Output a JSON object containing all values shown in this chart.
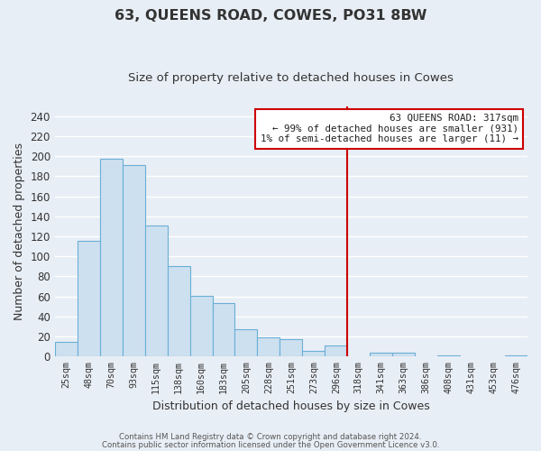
{
  "title": "63, QUEENS ROAD, COWES, PO31 8BW",
  "subtitle": "Size of property relative to detached houses in Cowes",
  "xlabel": "Distribution of detached houses by size in Cowes",
  "ylabel": "Number of detached properties",
  "bar_labels": [
    "25sqm",
    "48sqm",
    "70sqm",
    "93sqm",
    "115sqm",
    "138sqm",
    "160sqm",
    "183sqm",
    "205sqm",
    "228sqm",
    "251sqm",
    "273sqm",
    "296sqm",
    "318sqm",
    "341sqm",
    "363sqm",
    "386sqm",
    "408sqm",
    "431sqm",
    "453sqm",
    "476sqm"
  ],
  "bar_heights": [
    15,
    116,
    198,
    191,
    131,
    90,
    61,
    53,
    27,
    19,
    17,
    6,
    11,
    0,
    4,
    4,
    0,
    1,
    0,
    0,
    1
  ],
  "bar_color": "#cde0f0",
  "bar_edge_color": "#6aaed6",
  "ylim": [
    0,
    250
  ],
  "yticks": [
    0,
    20,
    40,
    60,
    80,
    100,
    120,
    140,
    160,
    180,
    200,
    220,
    240
  ],
  "vline_x_index": 13,
  "vline_color": "#cc0000",
  "annotation_title": "63 QUEENS ROAD: 317sqm",
  "annotation_line1": "← 99% of detached houses are smaller (931)",
  "annotation_line2": "1% of semi-detached houses are larger (11) →",
  "annotation_box_color": "#ffffff",
  "annotation_box_edge": "#cc0000",
  "footer1": "Contains HM Land Registry data © Crown copyright and database right 2024.",
  "footer2": "Contains public sector information licensed under the Open Government Licence v3.0.",
  "background_color": "#e8eef5",
  "plot_bg_color": "#e8eef5",
  "grid_color": "#ffffff"
}
